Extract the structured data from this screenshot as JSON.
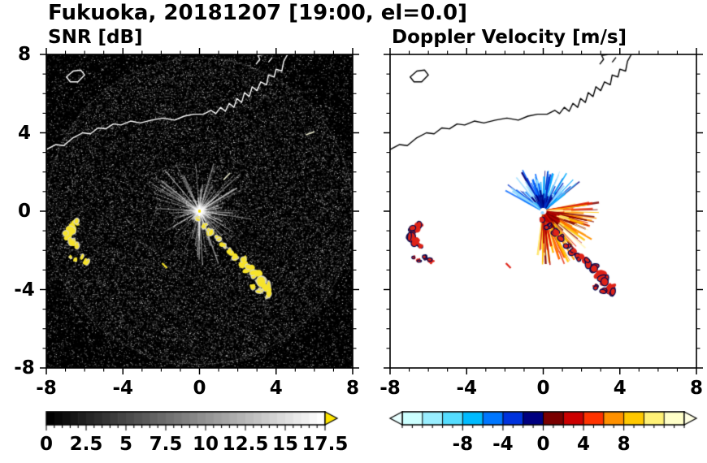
{
  "title": "Fukuoka, 20181207 [19:00, el=0.0]",
  "chart_data": {
    "type": "heatmap",
    "title": "Fukuoka, 20181207 [19:00, el=0.0]",
    "station": "Fukuoka",
    "date": "20181207",
    "time": "19:00",
    "elevation_deg": "0.0",
    "axes": {
      "xlim": [
        -8,
        8
      ],
      "ylim": [
        -8,
        8
      ],
      "major_ticks": [
        -8,
        -4,
        0,
        4,
        8
      ],
      "tick_labels": [
        "-8",
        "-4",
        "0",
        "4",
        "8"
      ],
      "minor_step": 1
    },
    "panels": [
      {
        "label": "SNR [dB]",
        "background": "#000000",
        "coastline_color": "#ffffff",
        "noise": {
          "count": 42000,
          "max_gray": 190
        },
        "streaks": {
          "count": 185,
          "color": "#ffffff",
          "max_r": 2.9
        },
        "center_dot_color": "#ffe600",
        "echo_fill": "#f6e32b",
        "echo_outline": "rgba(215,215,215,0.85)"
      },
      {
        "label": "Doppler Velocity [m/s]",
        "background": "#ffffff",
        "coastline_color": "#000000",
        "center_hole_color": "#ffffff",
        "center_dot_color": "#8fd4ff",
        "echo_fill": "#df2318",
        "echo_outline": "#000a50",
        "fans": [
          {
            "a0": 38,
            "a1": 152,
            "rmin": 0.35,
            "rmax": 2.45,
            "count": 170,
            "pow": 1.6,
            "colors": [
              "#8fd8ff",
              "#3fc0ff",
              "#00aaff",
              "#0066ff",
              "#0033cc",
              "#000080",
              "#9adcff"
            ]
          },
          {
            "a0": -98,
            "a1": 14,
            "rmin": 0.35,
            "rmax": 3.05,
            "count": 240,
            "pow": 1.4,
            "colors": [
              "#7a0000",
              "#b80000",
              "#e82200",
              "#ff5500",
              "#ff9100",
              "#ffc400",
              "#ffe566",
              "#fff6b0"
            ]
          },
          {
            "a0": 55,
            "a1": 125,
            "rmin": 0.22,
            "rmax": 0.95,
            "count": 70,
            "pow": 1.0,
            "colors": [
              "#000080",
              "#0033cc",
              "#001a99"
            ]
          },
          {
            "a0": -75,
            "a1": -8,
            "rmin": 0.22,
            "rmax": 1.05,
            "count": 80,
            "pow": 1.0,
            "colors": [
              "#7a0000",
              "#b00000",
              "#d01000"
            ]
          }
        ]
      }
    ],
    "colorbars": [
      {
        "for_panel": "SNR [dB]",
        "range": [
          0,
          17.5
        ],
        "tick_values": [
          0,
          2.5,
          5,
          7.5,
          10,
          12.5,
          15,
          17.5
        ],
        "tick_labels": [
          "0",
          "2.5",
          "5",
          "7.5",
          "10",
          "12.5",
          "15",
          "17.5"
        ],
        "minor_step": 0.5,
        "segments": 35,
        "gradient": [
          "#000000",
          "#ffffff"
        ],
        "over_arrow": "#ffe600",
        "under_arrow": null
      },
      {
        "for_panel": "Doppler Velocity [m/s]",
        "range": [
          -14,
          14
        ],
        "tick_values": [
          -8,
          -4,
          0,
          4,
          8
        ],
        "tick_labels": [
          "-8",
          "-4",
          "0",
          "4",
          "8"
        ],
        "minor_step": 1,
        "palette": [
          "#ccffff",
          "#99eeff",
          "#55ddff",
          "#00bbff",
          "#0077ff",
          "#0033dd",
          "#000080",
          "#7a0000",
          "#cc0000",
          "#ff3300",
          "#ff9100",
          "#ffc800",
          "#fff176",
          "#ffffc8"
        ],
        "over_arrow": "#ffffe4",
        "under_arrow": "#e8ffff"
      }
    ],
    "coastline": [
      [
        -8,
        3.15
      ],
      [
        -7.5,
        3.4
      ],
      [
        -7.1,
        3.35
      ],
      [
        -6.6,
        3.75
      ],
      [
        -6.1,
        4.0
      ],
      [
        -5.7,
        3.95
      ],
      [
        -5.3,
        4.25
      ],
      [
        -4.9,
        4.2
      ],
      [
        -4.5,
        4.45
      ],
      [
        -4.1,
        4.4
      ],
      [
        -3.6,
        4.6
      ],
      [
        -3.1,
        4.5
      ],
      [
        -2.5,
        4.65
      ],
      [
        -1.9,
        4.75
      ],
      [
        -1.3,
        4.65
      ],
      [
        -0.8,
        4.85
      ],
      [
        -0.3,
        4.95
      ],
      [
        0.2,
        4.95
      ],
      [
        0.6,
        5.15
      ],
      [
        0.85,
        4.98
      ],
      [
        1.1,
        5.3
      ],
      [
        1.35,
        5.1
      ],
      [
        1.55,
        5.5
      ],
      [
        1.8,
        5.3
      ],
      [
        1.95,
        5.75
      ],
      [
        2.2,
        5.55
      ],
      [
        2.35,
        6.05
      ],
      [
        2.6,
        5.85
      ],
      [
        2.75,
        6.35
      ],
      [
        3.0,
        6.15
      ],
      [
        3.2,
        6.6
      ],
      [
        3.5,
        6.45
      ],
      [
        3.6,
        6.95
      ],
      [
        3.9,
        6.85
      ],
      [
        4.0,
        7.25
      ],
      [
        4.3,
        7.15
      ],
      [
        4.4,
        7.65
      ],
      [
        4.6,
        8.0
      ]
    ],
    "island": [
      [
        -6.95,
        6.85
      ],
      [
        -6.6,
        7.15
      ],
      [
        -6.2,
        7.2
      ],
      [
        -6.0,
        6.95
      ],
      [
        -6.35,
        6.6
      ],
      [
        -6.75,
        6.6
      ]
    ],
    "top_marks": [
      [
        [
          2.95,
          7.5
        ],
        [
          3.15,
          7.75
        ],
        [
          3.05,
          7.95
        ],
        [
          3.35,
          8.0
        ]
      ],
      [
        [
          3.6,
          7.6
        ],
        [
          3.8,
          7.85
        ]
      ]
    ],
    "left_marks": [
      [
        [
          5.55,
          3.9
        ],
        [
          6.0,
          4.05
        ]
      ],
      [
        [
          1.25,
          1.6
        ],
        [
          1.6,
          1.95
        ]
      ]
    ],
    "echoes": {
      "west_cluster": [
        [
          -6.5,
          -0.6,
          0.22
        ],
        [
          -6.75,
          -0.9,
          0.3
        ],
        [
          -6.9,
          -1.25,
          0.27
        ],
        [
          -6.7,
          -1.55,
          0.22
        ],
        [
          -6.45,
          -1.75,
          0.16
        ],
        [
          -6.15,
          -2.3,
          0.14
        ],
        [
          -5.9,
          -2.55,
          0.18
        ],
        [
          -6.5,
          -2.5,
          0.13
        ],
        [
          -6.75,
          -2.35,
          0.1
        ]
      ],
      "southeast_arc": [
        [
          -0.1,
          -0.45,
          0.16
        ],
        [
          0.25,
          -0.75,
          0.17
        ],
        [
          0.6,
          -1.05,
          0.2
        ],
        [
          0.95,
          -1.4,
          0.18
        ],
        [
          1.25,
          -1.75,
          0.16
        ],
        [
          1.55,
          -2.05,
          0.18
        ],
        [
          1.9,
          -2.35,
          0.22
        ],
        [
          2.25,
          -2.6,
          0.26
        ],
        [
          2.6,
          -2.9,
          0.26
        ],
        [
          2.95,
          -3.25,
          0.28
        ],
        [
          3.25,
          -3.55,
          0.3
        ],
        [
          3.5,
          -3.9,
          0.28
        ],
        [
          3.65,
          -4.2,
          0.22
        ],
        [
          3.15,
          -4.05,
          0.18
        ],
        [
          2.75,
          -3.85,
          0.15
        ]
      ],
      "small_diagonal": [
        [
          -1.95,
          -2.65
        ],
        [
          -1.7,
          -2.9
        ]
      ]
    }
  }
}
